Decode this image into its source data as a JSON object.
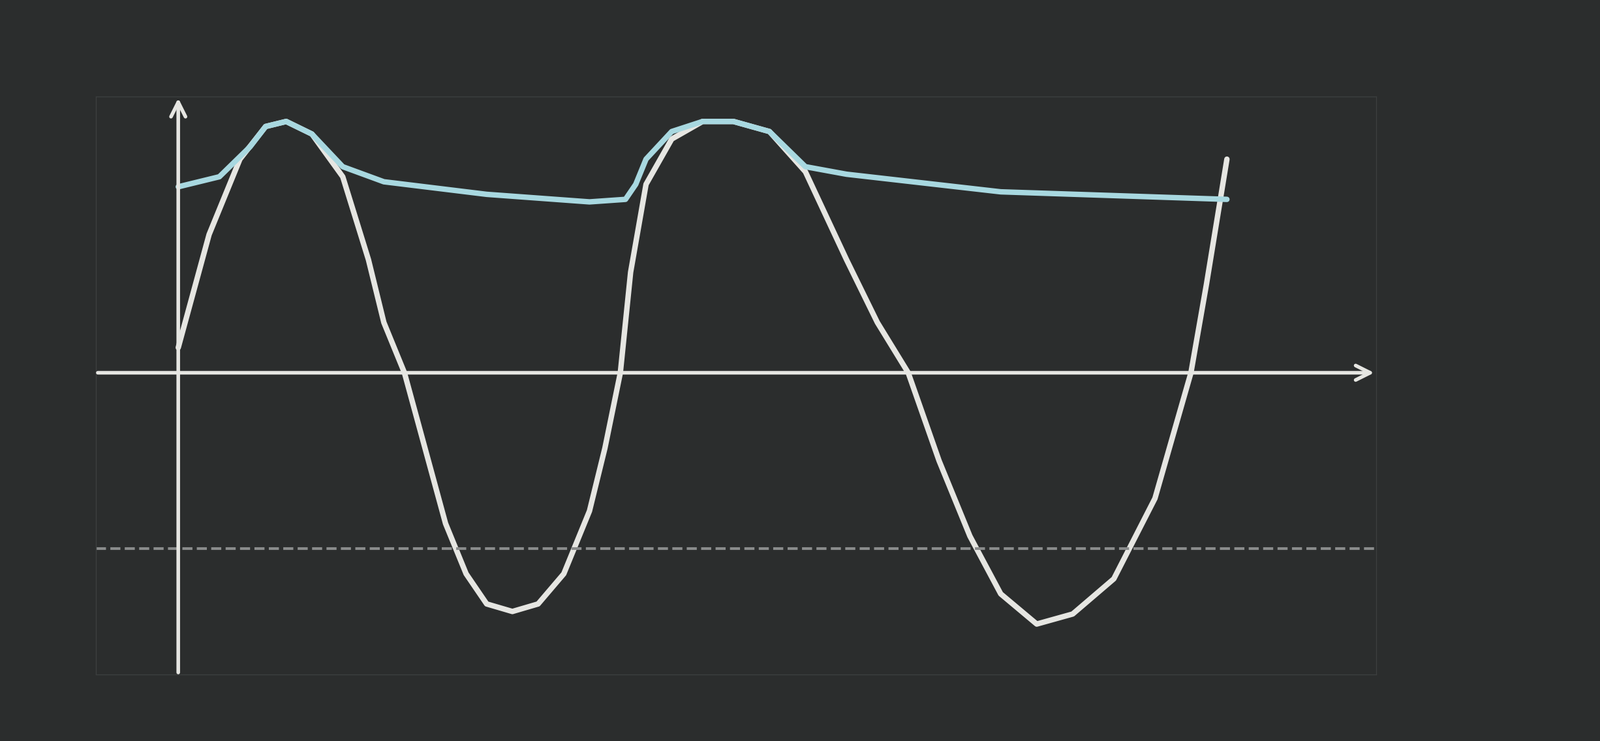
{
  "chart_data": {
    "type": "line",
    "xlim": [
      -0.8,
      11.65
    ],
    "ylim": [
      -1.2,
      1.1
    ],
    "tick_labels": false,
    "grid": false,
    "series": [
      {
        "color": "#e6e6e2",
        "line_style": "solid",
        "x": [
          0,
          0.3,
          0.6,
          0.85,
          1.05,
          1.3,
          1.6,
          1.85,
          2.0,
          2.2,
          2.4,
          2.6,
          2.8,
          3.0,
          3.25,
          3.5,
          3.75,
          4.0,
          4.15,
          4.3,
          4.4,
          4.55,
          4.8,
          5.1,
          5.4,
          5.75,
          6.1,
          6.5,
          6.8,
          7.1,
          7.4,
          7.7,
          8.0,
          8.35,
          8.7,
          9.1,
          9.5,
          9.85,
          10.0,
          10.1,
          10.2
        ],
        "values": [
          0.1,
          0.55,
          0.85,
          0.98,
          1.0,
          0.95,
          0.78,
          0.45,
          0.2,
          0,
          -0.3,
          -0.6,
          -0.8,
          -0.92,
          -0.95,
          -0.92,
          -0.8,
          -0.55,
          -0.3,
          0,
          0.4,
          0.75,
          0.93,
          1.0,
          1.0,
          0.96,
          0.8,
          0.45,
          0.2,
          0,
          -0.35,
          -0.65,
          -0.88,
          -1.0,
          -0.96,
          -0.82,
          -0.5,
          0,
          0.35,
          0.6,
          0.85
        ]
      },
      {
        "color": "#a8d8e0",
        "line_style": "solid",
        "x": [
          0,
          0.4,
          0.7,
          0.85,
          1.05,
          1.3,
          1.6,
          2.0,
          3.0,
          4.0,
          4.35,
          4.45,
          4.55,
          4.8,
          5.1,
          5.4,
          5.75,
          6.1,
          6.5,
          8.0,
          10.2
        ],
        "values": [
          0.74,
          0.78,
          0.9,
          0.98,
          1.0,
          0.95,
          0.82,
          0.76,
          0.71,
          0.68,
          0.69,
          0.75,
          0.85,
          0.96,
          1.0,
          1.0,
          0.96,
          0.82,
          0.79,
          0.72,
          0.69
        ]
      },
      {
        "color": "#8a8c8c",
        "line_style": "dashed",
        "x": [
          -0.8,
          11.65
        ],
        "values": [
          -0.7,
          -0.7
        ]
      }
    ]
  }
}
